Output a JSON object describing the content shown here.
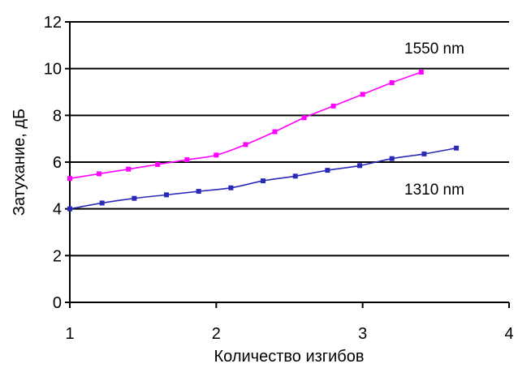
{
  "chart_data": {
    "type": "line",
    "xlabel": "Количество изгибов",
    "ylabel": "Затухание, дБ",
    "xlim": [
      1,
      4
    ],
    "ylim": [
      0,
      12
    ],
    "xticks": [
      "1",
      "2",
      "3",
      "4"
    ],
    "yticks": [
      "0",
      "2",
      "4",
      "6",
      "8",
      "10",
      "12"
    ],
    "grid": "horizontal",
    "series": [
      {
        "name": "1550 nm",
        "color": "#ff00ff",
        "x": [
          1.0,
          1.2,
          1.4,
          1.6,
          1.8,
          2.0,
          2.2,
          2.4,
          2.6,
          2.8,
          3.0,
          3.2,
          3.4
        ],
        "y": [
          5.3,
          5.5,
          5.7,
          5.9,
          6.1,
          6.3,
          6.75,
          7.3,
          7.9,
          8.4,
          8.9,
          9.4,
          9.85
        ]
      },
      {
        "name": "1310 nm",
        "color": "#2a2ab8",
        "x": [
          1.0,
          1.22,
          1.44,
          1.66,
          1.88,
          2.1,
          2.32,
          2.54,
          2.76,
          2.98,
          3.2,
          3.42,
          3.64
        ],
        "y": [
          4.0,
          4.25,
          4.45,
          4.6,
          4.75,
          4.9,
          5.2,
          5.4,
          5.65,
          5.85,
          6.15,
          6.35,
          6.6
        ]
      }
    ]
  }
}
